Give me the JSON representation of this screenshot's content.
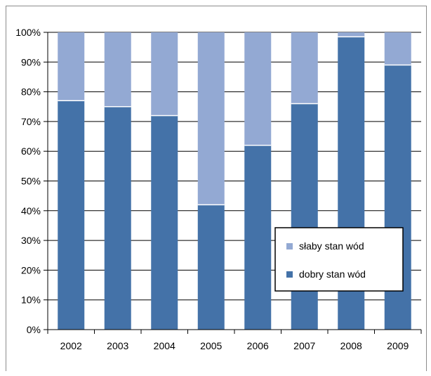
{
  "chart_data": {
    "type": "bar",
    "stacked": true,
    "categories": [
      "2002",
      "2003",
      "2004",
      "2005",
      "2006",
      "2007",
      "2008",
      "2009"
    ],
    "series": [
      {
        "name": "dobry stan wód",
        "color": "#4472a8",
        "values": [
          77,
          75,
          72,
          42,
          62,
          76,
          98.5,
          89
        ]
      },
      {
        "name": "słaby stan wód",
        "color": "#93a9d3",
        "values": [
          23,
          25,
          28,
          58,
          38,
          24,
          1.5,
          11
        ]
      }
    ],
    "yticks": [
      "0%",
      "10%",
      "20%",
      "30%",
      "40%",
      "50%",
      "60%",
      "70%",
      "80%",
      "90%",
      "100%"
    ],
    "ylim": [
      0,
      100
    ],
    "grid": true,
    "legend": {
      "position": "inside-right",
      "entries": [
        "słaby stan wód",
        "dobry stan wód"
      ]
    }
  }
}
